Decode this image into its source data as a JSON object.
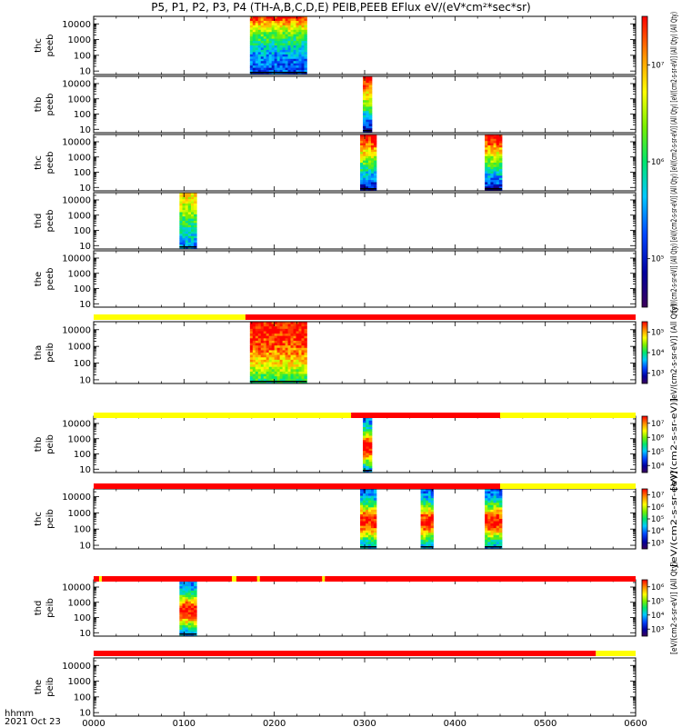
{
  "title": "P5, P1, P2, P3, P4 (TH-A,B,C,D,E) PEIB,PEEB EFlux eV/(eV*cm²*sec*sr)",
  "colors": {
    "flag_red": "#ff0000",
    "flag_yellow": "#ffff00",
    "flag_black": "#000000"
  },
  "chart_data": {
    "type": "heatmap",
    "x_axis": {
      "label_line1": "hhmm",
      "label_line2": "2021 Oct 23",
      "range_hours": [
        0,
        6
      ],
      "tick_labels": [
        "0000",
        "0100",
        "0200",
        "0300",
        "0400",
        "0500",
        "0600"
      ]
    },
    "y_axis": {
      "scale": "log",
      "range_eV": [
        6,
        30000
      ],
      "tick_labels": [
        "10",
        "100",
        "1000",
        "10000"
      ]
    },
    "panels": [
      {
        "label": [
          "thc",
          "peeb"
        ],
        "data_blocks": [
          {
            "start": 1.73,
            "end": 2.36,
            "profile": "elec_hot"
          }
        ]
      },
      {
        "label": [
          "thb",
          "peeb"
        ],
        "data_blocks": [
          {
            "start": 2.98,
            "end": 3.08,
            "profile": "elec_cold"
          }
        ]
      },
      {
        "label": [
          "thc",
          "peeb"
        ],
        "data_blocks": [
          {
            "start": 2.95,
            "end": 3.13,
            "profile": "elec_cold"
          },
          {
            "start": 4.33,
            "end": 4.52,
            "profile": "elec_cold"
          }
        ]
      },
      {
        "label": [
          "thd",
          "peeb"
        ],
        "data_blocks": [
          {
            "start": 0.95,
            "end": 1.14,
            "profile": "elec_mid"
          }
        ]
      },
      {
        "label": [
          "the",
          "peeb"
        ],
        "data_blocks": []
      },
      {
        "label": [
          "tha",
          "peib"
        ],
        "data_blocks": [
          {
            "start": 1.73,
            "end": 2.36,
            "profile": "ion_hot"
          }
        ]
      },
      {
        "label": [
          "thb",
          "peib"
        ],
        "data_blocks": [
          {
            "start": 2.98,
            "end": 3.08,
            "profile": "ion_mid"
          }
        ]
      },
      {
        "label": [
          "thc",
          "peib"
        ],
        "data_blocks": [
          {
            "start": 2.95,
            "end": 3.13,
            "profile": "ion_mid"
          },
          {
            "start": 3.62,
            "end": 3.76,
            "profile": "ion_mid"
          },
          {
            "start": 4.33,
            "end": 4.52,
            "profile": "ion_mid"
          }
        ]
      },
      {
        "label": [
          "thd",
          "peib"
        ],
        "data_blocks": [
          {
            "start": 0.95,
            "end": 1.14,
            "profile": "ion_mid"
          }
        ]
      },
      {
        "label": [
          "the",
          "peib"
        ],
        "data_blocks": []
      }
    ],
    "flag_bars": [
      {
        "after_panel": 4,
        "segments": [
          {
            "start": 0,
            "end": 1.68,
            "color": "yellow"
          },
          {
            "start": 1.68,
            "end": 6,
            "color": "red"
          }
        ]
      },
      {
        "after_panel": 5,
        "segments": [
          {
            "start": 0,
            "end": 2.85,
            "color": "yellow"
          },
          {
            "start": 2.85,
            "end": 4.5,
            "color": "red"
          },
          {
            "start": 4.5,
            "end": 6,
            "color": "yellow"
          }
        ]
      },
      {
        "after_panel": 6,
        "segments": [
          {
            "start": 0,
            "end": 4.5,
            "color": "red"
          },
          {
            "start": 4.5,
            "end": 6,
            "color": "yellow"
          }
        ]
      },
      {
        "after_panel": 7,
        "segments": [
          {
            "start": 0,
            "end": 0.06,
            "color": "red"
          },
          {
            "start": 0.06,
            "end": 0.09,
            "color": "yellow"
          },
          {
            "start": 0.09,
            "end": 1.53,
            "color": "red"
          },
          {
            "start": 1.53,
            "end": 1.58,
            "color": "yellow"
          },
          {
            "start": 1.58,
            "end": 1.81,
            "color": "red"
          },
          {
            "start": 1.81,
            "end": 1.84,
            "color": "yellow"
          },
          {
            "start": 1.84,
            "end": 2.53,
            "color": "red"
          },
          {
            "start": 2.53,
            "end": 2.56,
            "color": "yellow"
          },
          {
            "start": 2.56,
            "end": 6,
            "color": "red"
          }
        ]
      },
      {
        "after_panel": 8,
        "segments": [
          {
            "start": 0,
            "end": 5.56,
            "color": "red"
          },
          {
            "start": 5.56,
            "end": 6,
            "color": "yellow"
          }
        ]
      }
    ],
    "colorbars": [
      {
        "panels": [
          0,
          3
        ],
        "tick_labels": [
          "10⁵",
          "10⁶",
          "10⁷"
        ],
        "label": "[eV/(cm2-s-sr-eV)] (All Qty) [eV/(cm2-s-sr-eV)] (All Qty) [eV/(cm2-s-sr-eV)] (All Qty) [eV/(cm2-s-sr-eV)] (All Qty) (All Qty)"
      },
      {
        "panels": [
          5,
          5
        ],
        "tick_labels": [
          "10³",
          "10⁴",
          "10⁵"
        ],
        "label": "[eV/(cm2-s-sr-eV)] (All Qty)"
      },
      {
        "panels": [
          6,
          6
        ],
        "tick_labels": [
          "10⁴",
          "10⁵",
          "10⁶",
          "10⁷"
        ],
        "label": "[eV/(cm2-s-sr-eV)]"
      },
      {
        "panels": [
          7,
          7
        ],
        "tick_labels": [
          "10³",
          "10⁴",
          "10⁵",
          "10⁶",
          "10⁷"
        ],
        "label": "[eV/(cm2-s-sr-eV)]"
      },
      {
        "panels": [
          8,
          9
        ],
        "tick_labels": [
          "10³",
          "10⁴",
          "10⁵",
          "10⁶"
        ],
        "label": "[eV/(cm2-s-sr-eV)] (All Qty)"
      }
    ]
  }
}
